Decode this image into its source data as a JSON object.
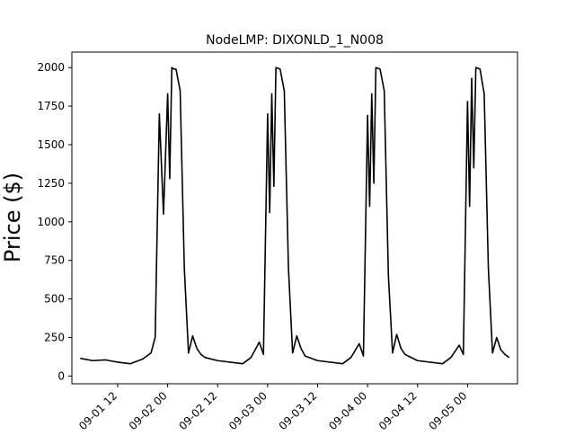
{
  "chart_data": {
    "type": "line",
    "title": "NodeLMP: DIXONLD_1_N008",
    "xlabel": "",
    "ylabel": "Price ($)",
    "xlim": [
      "2020-09-01 01:00",
      "2020-09-05 12:00"
    ],
    "ylim": [
      -50,
      2100
    ],
    "grid": false,
    "x_ticks": [
      {
        "label": "09-01 12",
        "value": "2020-09-01 12:00"
      },
      {
        "label": "09-02 00",
        "value": "2020-09-02 00:00"
      },
      {
        "label": "09-02 12",
        "value": "2020-09-02 12:00"
      },
      {
        "label": "09-03 00",
        "value": "2020-09-03 00:00"
      },
      {
        "label": "09-03 12",
        "value": "2020-09-03 12:00"
      },
      {
        "label": "09-04 00",
        "value": "2020-09-04 00:00"
      },
      {
        "label": "09-04 12",
        "value": "2020-09-04 12:00"
      },
      {
        "label": "09-05 00",
        "value": "2020-09-05 00:00"
      }
    ],
    "y_ticks": [
      0,
      250,
      500,
      750,
      1000,
      1250,
      1500,
      1750,
      2000
    ],
    "series": [
      {
        "color": "#000000",
        "x": [
          "2020-09-01 03:00",
          "2020-09-01 06:00",
          "2020-09-01 09:00",
          "2020-09-01 12:00",
          "2020-09-01 15:00",
          "2020-09-01 17:00",
          "2020-09-01 18:00",
          "2020-09-01 19:00",
          "2020-09-01 20:00",
          "2020-09-01 21:00",
          "2020-09-01 22:00",
          "2020-09-01 23:00",
          "2020-09-02 00:00",
          "2020-09-02 00:30",
          "2020-09-02 01:00",
          "2020-09-02 01:30",
          "2020-09-02 02:00",
          "2020-09-02 03:00",
          "2020-09-02 04:00",
          "2020-09-02 05:00",
          "2020-09-02 06:00",
          "2020-09-02 07:00",
          "2020-09-02 08:00",
          "2020-09-02 09:00",
          "2020-09-02 12:00",
          "2020-09-02 18:00",
          "2020-09-02 20:00",
          "2020-09-02 22:00",
          "2020-09-02 23:00",
          "2020-09-03 00:00",
          "2020-09-03 00:30",
          "2020-09-03 01:00",
          "2020-09-03 01:30",
          "2020-09-03 02:00",
          "2020-09-03 03:00",
          "2020-09-03 04:00",
          "2020-09-03 05:00",
          "2020-09-03 06:00",
          "2020-09-03 07:00",
          "2020-09-03 08:00",
          "2020-09-03 09:00",
          "2020-09-03 12:00",
          "2020-09-03 18:00",
          "2020-09-03 20:00",
          "2020-09-03 22:00",
          "2020-09-03 23:00",
          "2020-09-04 00:00",
          "2020-09-04 00:30",
          "2020-09-04 01:00",
          "2020-09-04 01:30",
          "2020-09-04 02:00",
          "2020-09-04 03:00",
          "2020-09-04 04:00",
          "2020-09-04 05:00",
          "2020-09-04 06:00",
          "2020-09-04 07:00",
          "2020-09-04 08:00",
          "2020-09-04 09:00",
          "2020-09-04 12:00",
          "2020-09-04 18:00",
          "2020-09-04 20:00",
          "2020-09-04 22:00",
          "2020-09-04 23:00",
          "2020-09-05 00:00",
          "2020-09-05 00:30",
          "2020-09-05 01:00",
          "2020-09-05 01:30",
          "2020-09-05 02:00",
          "2020-09-05 03:00",
          "2020-09-05 04:00",
          "2020-09-05 05:00",
          "2020-09-05 06:00",
          "2020-09-05 07:00",
          "2020-09-05 08:00",
          "2020-09-05 09:00",
          "2020-09-05 10:00"
        ],
        "y": [
          115,
          100,
          105,
          90,
          80,
          100,
          110,
          130,
          150,
          250,
          1700,
          1050,
          1830,
          1280,
          2000,
          1990,
          1990,
          1850,
          700,
          150,
          260,
          180,
          140,
          120,
          100,
          80,
          120,
          220,
          140,
          1700,
          1060,
          1830,
          1230,
          2000,
          1990,
          1850,
          700,
          150,
          260,
          180,
          130,
          100,
          80,
          120,
          210,
          130,
          1690,
          1100,
          1830,
          1250,
          2000,
          1990,
          1850,
          650,
          150,
          270,
          180,
          140,
          100,
          80,
          120,
          200,
          140,
          1780,
          1100,
          1930,
          1350,
          2000,
          1990,
          1830,
          700,
          150,
          250,
          170,
          140,
          120
        ]
      }
    ]
  }
}
